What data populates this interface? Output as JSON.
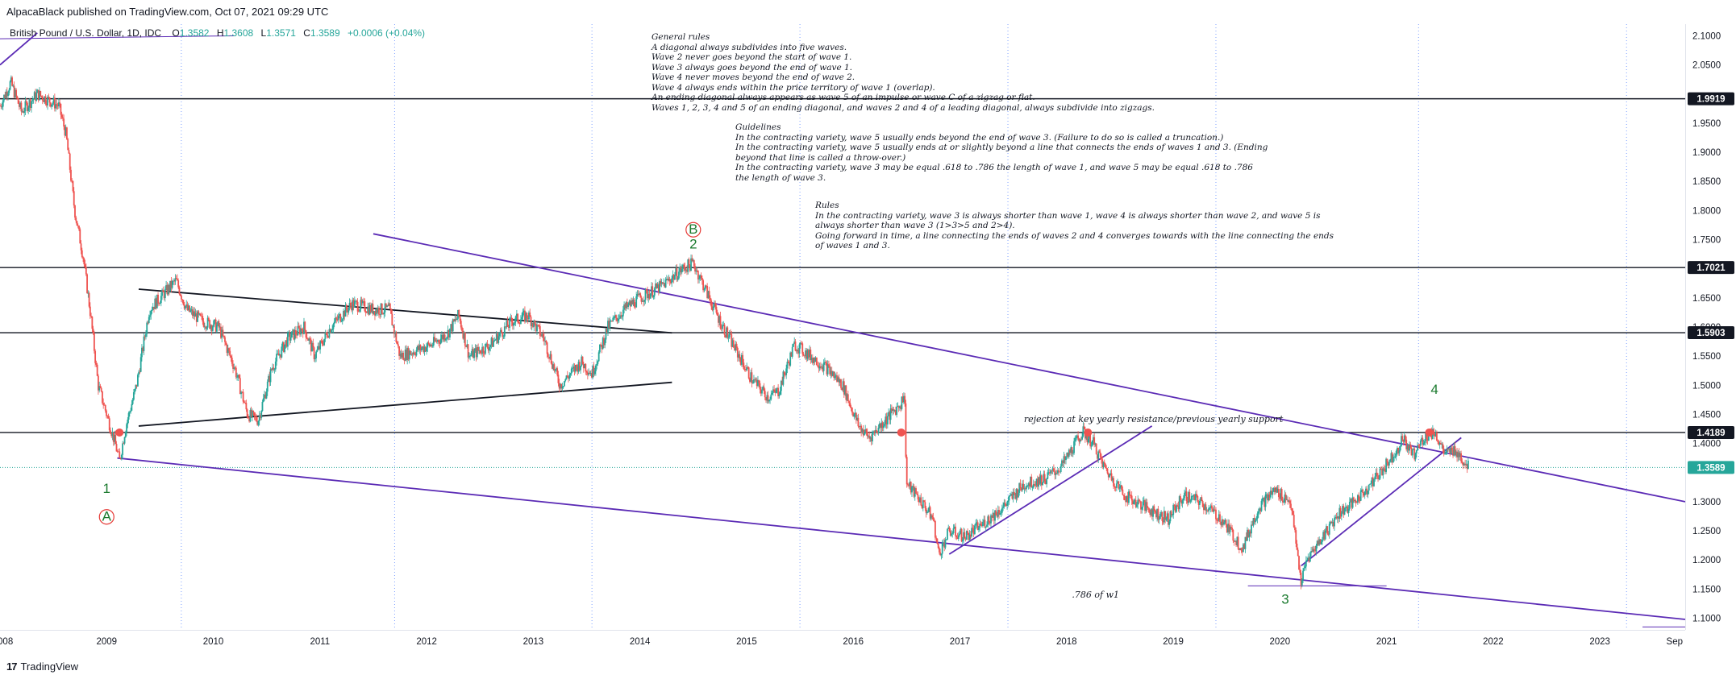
{
  "header": {
    "published": "AlpacaBlack published on TradingView.com, Oct 07, 2021 09:29 UTC"
  },
  "symbol": {
    "name": "British Pound / U.S. Dollar, 1D, IDC",
    "open": "1.3582",
    "high": "1.3608",
    "low": "1.3571",
    "close": "1.3589",
    "change": "+0.0006 (+0.04%)"
  },
  "notes": {
    "general_rules": "General rules\nA diagonal always subdivides into five waves.\nWave 2 never goes beyond the start of wave 1.\nWave 3 always goes beyond the end of wave 1.\nWave 4 never moves beyond the end of wave 2.\nWave 4 always ends within the price territory of wave 1 (overlap).\nAn ending diagonal always appears as wave 5 of an impulse or wave C of a zigzag or flat.\nWaves 1, 2, 3, 4 and 5 of an ending diagonal, and waves 2 and 4 of a leading diagonal, always subdivide into zigzags.",
    "guidelines": "Guidelines\nIn the contracting variety, wave 5 usually ends beyond the end of wave 3. (Failure to do so is called a truncation.)\nIn the contracting variety, wave 5 usually ends at or slightly beyond a line that connects the ends of waves 1 and 3. (Ending\nbeyond that line is called a throw-over.)\nIn the contracting variety, wave 3 may be equal .618 to .786 the length of wave 1, and wave 5 may be equal .618 to .786\nthe length of wave 3.",
    "rules": "Rules\nIn the contracting variety, wave 3 is always shorter than wave 1, wave 4 is always shorter than wave 2, and wave 5 is\nalways shorter than wave 3 (1>3>5 and 2>4).\nGoing forward in time, a line connecting the ends of waves 2 and 4 converges towards with the line connecting the ends\nof waves 1 and 3."
  },
  "annotations": {
    "rejection": "rejection at key yearly resistance/previous yearly support",
    "fib": ".786 of w1"
  },
  "wave_labels": {
    "w1": "1",
    "w2": "2",
    "w3": "3",
    "w4": "4",
    "wA": "A",
    "wB": "B"
  },
  "price_axis": {
    "ticks": [
      "2.1000",
      "2.0500",
      "1.9500",
      "1.9000",
      "1.8500",
      "1.8000",
      "1.7500",
      "1.6500",
      "1.6000",
      "1.5500",
      "1.5000",
      "1.4500",
      "1.4000",
      "1.3000",
      "1.2500",
      "1.2000",
      "1.1500",
      "1.1000"
    ],
    "tags": [
      {
        "label": "1.9919",
        "value": 1.9919,
        "color": "#131722"
      },
      {
        "label": "1.7021",
        "value": 1.7021,
        "color": "#131722"
      },
      {
        "label": "1.5903",
        "value": 1.5903,
        "color": "#131722"
      },
      {
        "label": "1.4189",
        "value": 1.4189,
        "color": "#131722"
      },
      {
        "label": "1.3589",
        "value": 1.3589,
        "color": "#26a69a"
      }
    ]
  },
  "time_axis": {
    "labels": [
      "008",
      "2009",
      "2010",
      "2011",
      "2012",
      "2013",
      "2014",
      "2015",
      "2016",
      "2017",
      "2018",
      "2019",
      "2020",
      "2021",
      "2022",
      "2023",
      "Sep"
    ]
  },
  "footer": {
    "logo_mark": "17",
    "logo_text": "TradingView"
  },
  "colors": {
    "up": "#26a69a",
    "down": "#ef5350",
    "channel": "#5b2bb5",
    "level": "#131722",
    "wave": "#1b7a2e",
    "circle": "#e53935"
  },
  "chart_data": {
    "type": "candlestick",
    "title": "British Pound / U.S. Dollar, 1D, IDC",
    "xlabel": "",
    "ylabel": "",
    "x_range": [
      2008.0,
      2023.8
    ],
    "ylim": [
      1.08,
      2.12
    ],
    "horizontal_levels": [
      1.9919,
      1.7021,
      1.5903,
      1.4189
    ],
    "last_price": 1.3589,
    "price_path": [
      [
        2008.0,
        1.98
      ],
      [
        2008.1,
        2.02
      ],
      [
        2008.2,
        1.97
      ],
      [
        2008.35,
        2.0
      ],
      [
        2008.45,
        1.99
      ],
      [
        2008.55,
        1.98
      ],
      [
        2008.62,
        1.93
      ],
      [
        2008.7,
        1.8
      ],
      [
        2008.78,
        1.72
      ],
      [
        2008.85,
        1.62
      ],
      [
        2008.92,
        1.5
      ],
      [
        2009.0,
        1.45
      ],
      [
        2009.08,
        1.4
      ],
      [
        2009.12,
        1.37
      ],
      [
        2009.18,
        1.43
      ],
      [
        2009.28,
        1.5
      ],
      [
        2009.4,
        1.63
      ],
      [
        2009.55,
        1.66
      ],
      [
        2009.65,
        1.68
      ],
      [
        2009.75,
        1.63
      ],
      [
        2009.9,
        1.61
      ],
      [
        2010.05,
        1.6
      ],
      [
        2010.2,
        1.53
      ],
      [
        2010.32,
        1.45
      ],
      [
        2010.42,
        1.44
      ],
      [
        2010.55,
        1.53
      ],
      [
        2010.7,
        1.58
      ],
      [
        2010.85,
        1.6
      ],
      [
        2010.95,
        1.55
      ],
      [
        2011.1,
        1.6
      ],
      [
        2011.3,
        1.64
      ],
      [
        2011.5,
        1.63
      ],
      [
        2011.65,
        1.63
      ],
      [
        2011.75,
        1.55
      ],
      [
        2011.9,
        1.56
      ],
      [
        2012.05,
        1.57
      ],
      [
        2012.2,
        1.59
      ],
      [
        2012.3,
        1.62
      ],
      [
        2012.4,
        1.55
      ],
      [
        2012.6,
        1.57
      ],
      [
        2012.8,
        1.61
      ],
      [
        2012.95,
        1.62
      ],
      [
        2013.1,
        1.58
      ],
      [
        2013.25,
        1.5
      ],
      [
        2013.45,
        1.54
      ],
      [
        2013.55,
        1.52
      ],
      [
        2013.7,
        1.6
      ],
      [
        2013.85,
        1.63
      ],
      [
        2014.0,
        1.65
      ],
      [
        2014.2,
        1.67
      ],
      [
        2014.4,
        1.7
      ],
      [
        2014.5,
        1.71
      ],
      [
        2014.6,
        1.67
      ],
      [
        2014.75,
        1.61
      ],
      [
        2014.9,
        1.56
      ],
      [
        2015.05,
        1.51
      ],
      [
        2015.2,
        1.48
      ],
      [
        2015.3,
        1.49
      ],
      [
        2015.45,
        1.57
      ],
      [
        2015.6,
        1.55
      ],
      [
        2015.75,
        1.53
      ],
      [
        2015.9,
        1.5
      ],
      [
        2016.05,
        1.43
      ],
      [
        2016.15,
        1.41
      ],
      [
        2016.3,
        1.44
      ],
      [
        2016.45,
        1.47
      ],
      [
        2016.48,
        1.49
      ],
      [
        2016.5,
        1.33
      ],
      [
        2016.6,
        1.31
      ],
      [
        2016.75,
        1.27
      ],
      [
        2016.8,
        1.21
      ],
      [
        2016.9,
        1.25
      ],
      [
        2017.05,
        1.24
      ],
      [
        2017.2,
        1.26
      ],
      [
        2017.4,
        1.29
      ],
      [
        2017.6,
        1.33
      ],
      [
        2017.8,
        1.34
      ],
      [
        2017.95,
        1.36
      ],
      [
        2018.15,
        1.42
      ],
      [
        2018.25,
        1.4
      ],
      [
        2018.35,
        1.36
      ],
      [
        2018.55,
        1.31
      ],
      [
        2018.75,
        1.29
      ],
      [
        2018.95,
        1.27
      ],
      [
        2019.1,
        1.31
      ],
      [
        2019.25,
        1.3
      ],
      [
        2019.45,
        1.27
      ],
      [
        2019.65,
        1.22
      ],
      [
        2019.8,
        1.29
      ],
      [
        2019.95,
        1.32
      ],
      [
        2020.1,
        1.3
      ],
      [
        2020.2,
        1.16
      ],
      [
        2020.25,
        1.2
      ],
      [
        2020.4,
        1.24
      ],
      [
        2020.55,
        1.28
      ],
      [
        2020.7,
        1.3
      ],
      [
        2020.85,
        1.33
      ],
      [
        2020.98,
        1.36
      ],
      [
        2021.1,
        1.39
      ],
      [
        2021.15,
        1.41
      ],
      [
        2021.25,
        1.38
      ],
      [
        2021.35,
        1.41
      ],
      [
        2021.45,
        1.42
      ],
      [
        2021.55,
        1.38
      ],
      [
        2021.65,
        1.39
      ],
      [
        2021.72,
        1.37
      ],
      [
        2021.77,
        1.3589
      ]
    ],
    "drawn_lines": [
      {
        "name": "channel-upper",
        "from": [
          2011.5,
          1.76
        ],
        "to": [
          2023.8,
          1.3
        ]
      },
      {
        "name": "channel-lower",
        "from": [
          2009.1,
          1.375
        ],
        "to": [
          2023.8,
          1.098
        ]
      },
      {
        "name": "triangle-upper",
        "from": [
          2009.3,
          1.665
        ],
        "to": [
          2014.3,
          1.59
        ]
      },
      {
        "name": "triangle-lower",
        "from": [
          2009.3,
          1.43
        ],
        "to": [
          2014.3,
          1.505
        ]
      },
      {
        "name": "trend-2017",
        "from": [
          2016.9,
          1.21
        ],
        "to": [
          2018.8,
          1.43
        ]
      },
      {
        "name": "trend-2020",
        "from": [
          2020.2,
          1.19
        ],
        "to": [
          2021.7,
          1.41
        ]
      }
    ]
  }
}
